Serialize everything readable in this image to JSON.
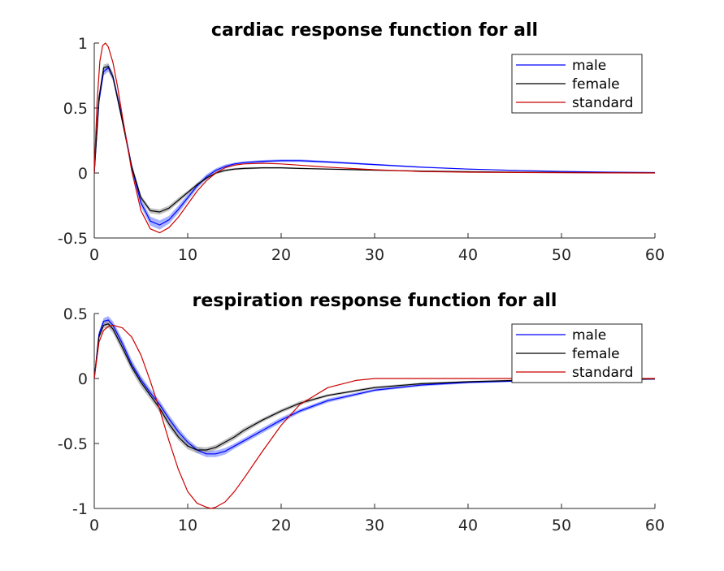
{
  "chart_data": [
    {
      "type": "line",
      "title": "cardiac response function for all",
      "xlim": [
        0,
        60
      ],
      "ylim": [
        -0.5,
        1
      ],
      "xticks": [
        "0",
        "10",
        "20",
        "30",
        "40",
        "50",
        "60"
      ],
      "yticks": [
        "-0.5",
        "0",
        "0.5",
        "1"
      ],
      "legend_position": "top-right",
      "series": [
        {
          "name": "male",
          "color": "#0000ff",
          "band": "#5c73ff",
          "x": [
            0,
            0.5,
            1,
            1.5,
            2,
            3,
            4,
            5,
            6,
            7,
            8,
            9,
            10,
            11,
            12,
            13,
            14,
            15,
            16,
            18,
            20,
            22,
            25,
            30,
            35,
            40,
            45,
            50,
            55,
            60
          ],
          "y": [
            0,
            0.55,
            0.78,
            0.81,
            0.74,
            0.42,
            0.05,
            -0.23,
            -0.37,
            -0.4,
            -0.36,
            -0.28,
            -0.19,
            -0.1,
            -0.03,
            0.02,
            0.05,
            0.07,
            0.08,
            0.09,
            0.095,
            0.095,
            0.085,
            0.065,
            0.045,
            0.03,
            0.02,
            0.012,
            0.006,
            0.003
          ],
          "spread": [
            0,
            0.02,
            0.03,
            0.03,
            0.03,
            0.03,
            0.03,
            0.03,
            0.035,
            0.035,
            0.03,
            0.03,
            0.025,
            0.02,
            0.02,
            0.015,
            0.015,
            0.01,
            0.01,
            0.01,
            0.01,
            0.01,
            0.008,
            0.006,
            0.005,
            0.004,
            0.003,
            0.002,
            0.001,
            0.001
          ]
        },
        {
          "name": "female",
          "color": "#000000",
          "band": "#909090",
          "x": [
            0,
            0.5,
            1,
            1.5,
            2,
            3,
            4,
            5,
            6,
            7,
            8,
            9,
            10,
            11,
            12,
            13,
            14,
            15,
            16,
            18,
            20,
            22,
            25,
            30,
            35,
            40,
            45,
            50,
            55,
            60
          ],
          "y": [
            0,
            0.58,
            0.81,
            0.82,
            0.74,
            0.4,
            0.05,
            -0.19,
            -0.29,
            -0.3,
            -0.27,
            -0.21,
            -0.15,
            -0.09,
            -0.04,
            0.0,
            0.02,
            0.03,
            0.035,
            0.04,
            0.04,
            0.035,
            0.03,
            0.022,
            0.015,
            0.01,
            0.006,
            0.004,
            0.002,
            0.001
          ],
          "spread": [
            0,
            0.02,
            0.025,
            0.025,
            0.025,
            0.025,
            0.025,
            0.02,
            0.02,
            0.02,
            0.02,
            0.02,
            0.015,
            0.015,
            0.01,
            0.01,
            0.01,
            0.008,
            0.008,
            0.006,
            0.006,
            0.005,
            0.005,
            0.004,
            0.003,
            0.002,
            0.002,
            0.001,
            0.001,
            0.001
          ]
        },
        {
          "name": "standard",
          "color": "#cc0000",
          "x": [
            0,
            0.3,
            0.6,
            0.9,
            1.2,
            1.5,
            2,
            2.5,
            3,
            4,
            5,
            6,
            7,
            8,
            9,
            10,
            11,
            12,
            13,
            14,
            15,
            16,
            18,
            20,
            25,
            30,
            35,
            40,
            50,
            60
          ],
          "y": [
            0,
            0.55,
            0.86,
            0.98,
            1.0,
            0.97,
            0.85,
            0.66,
            0.44,
            0.02,
            -0.29,
            -0.43,
            -0.46,
            -0.42,
            -0.34,
            -0.24,
            -0.14,
            -0.06,
            0.0,
            0.04,
            0.06,
            0.07,
            0.075,
            0.07,
            0.045,
            0.025,
            0.012,
            0.006,
            0.002,
            0.0
          ]
        }
      ]
    },
    {
      "type": "line",
      "title": "respiration response function for all",
      "xlim": [
        0,
        60
      ],
      "ylim": [
        -1,
        0.5
      ],
      "xticks": [
        "0",
        "10",
        "20",
        "30",
        "40",
        "50",
        "60"
      ],
      "yticks": [
        "-1",
        "-0.5",
        "0",
        "0.5"
      ],
      "legend_position": "top-right",
      "series": [
        {
          "name": "male",
          "color": "#0000ff",
          "band": "#5c73ff",
          "x": [
            0,
            0.5,
            1,
            1.5,
            2,
            3,
            4,
            5,
            6,
            7,
            8,
            9,
            10,
            11,
            12,
            13,
            14,
            15,
            16,
            18,
            20,
            22,
            25,
            30,
            35,
            40,
            45,
            50,
            55,
            60
          ],
          "y": [
            0,
            0.34,
            0.44,
            0.45,
            0.41,
            0.27,
            0.11,
            -0.01,
            -0.11,
            -0.2,
            -0.31,
            -0.41,
            -0.49,
            -0.55,
            -0.58,
            -0.58,
            -0.56,
            -0.52,
            -0.48,
            -0.4,
            -0.32,
            -0.25,
            -0.17,
            -0.09,
            -0.05,
            -0.03,
            -0.02,
            -0.015,
            -0.01,
            -0.005
          ],
          "spread": [
            0,
            0.02,
            0.025,
            0.03,
            0.03,
            0.035,
            0.035,
            0.03,
            0.03,
            0.03,
            0.03,
            0.03,
            0.025,
            0.025,
            0.025,
            0.025,
            0.025,
            0.02,
            0.02,
            0.02,
            0.02,
            0.015,
            0.015,
            0.01,
            0.01,
            0.008,
            0.006,
            0.005,
            0.004,
            0.003
          ]
        },
        {
          "name": "female",
          "color": "#000000",
          "band": "#909090",
          "x": [
            0,
            0.5,
            1,
            1.5,
            2,
            3,
            4,
            5,
            6,
            7,
            8,
            9,
            10,
            11,
            12,
            13,
            14,
            15,
            16,
            18,
            20,
            22,
            25,
            30,
            35,
            40,
            45,
            50,
            55,
            60
          ],
          "y": [
            0,
            0.32,
            0.41,
            0.42,
            0.38,
            0.24,
            0.09,
            -0.03,
            -0.13,
            -0.23,
            -0.35,
            -0.45,
            -0.52,
            -0.55,
            -0.55,
            -0.53,
            -0.49,
            -0.45,
            -0.4,
            -0.32,
            -0.25,
            -0.19,
            -0.13,
            -0.07,
            -0.04,
            -0.025,
            -0.015,
            -0.01,
            -0.006,
            -0.003
          ],
          "spread": [
            0,
            0.02,
            0.025,
            0.03,
            0.03,
            0.035,
            0.035,
            0.035,
            0.03,
            0.03,
            0.03,
            0.025,
            0.025,
            0.025,
            0.02,
            0.02,
            0.02,
            0.02,
            0.02,
            0.015,
            0.015,
            0.015,
            0.01,
            0.01,
            0.008,
            0.006,
            0.005,
            0.004,
            0.003,
            0.002
          ]
        },
        {
          "name": "standard",
          "color": "#cc0000",
          "x": [
            0,
            0.5,
            1,
            1.5,
            2,
            3,
            4,
            5,
            6,
            7,
            8,
            9,
            10,
            11,
            12,
            12.5,
            13,
            14,
            15,
            16,
            18,
            20,
            22,
            25,
            28,
            30,
            35,
            40,
            50,
            60
          ],
          "y": [
            0,
            0.28,
            0.37,
            0.4,
            0.41,
            0.39,
            0.32,
            0.18,
            -0.02,
            -0.24,
            -0.48,
            -0.7,
            -0.87,
            -0.96,
            -0.99,
            -1.0,
            -0.99,
            -0.95,
            -0.87,
            -0.77,
            -0.56,
            -0.36,
            -0.2,
            -0.07,
            -0.015,
            0.0,
            0.0,
            0.0,
            0.0,
            0.0
          ]
        }
      ]
    }
  ]
}
